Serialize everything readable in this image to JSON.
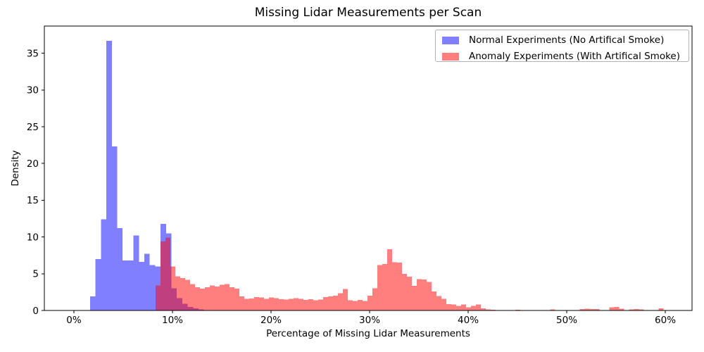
{
  "chart_data": {
    "type": "bar",
    "subtype": "histogram-density-overlay",
    "title": "Missing Lidar Measurements per Scan",
    "xlabel": "Percentage of Missing Lidar Measurements",
    "ylabel": "Density",
    "xlim": [
      -3,
      62.71
    ],
    "ylim": [
      0,
      38.7
    ],
    "grid": false,
    "bar_alpha": 0.5,
    "x_ticks": {
      "values": [
        0,
        10,
        20,
        30,
        40,
        50,
        60
      ],
      "labels": [
        "0%",
        "10%",
        "20%",
        "30%",
        "40%",
        "50%",
        "60%"
      ]
    },
    "y_ticks": {
      "values": [
        0,
        5,
        10,
        15,
        20,
        25,
        30,
        35
      ],
      "labels": [
        "0",
        "5",
        "10",
        "15",
        "20",
        "25",
        "30",
        "35"
      ]
    },
    "legend": {
      "position": "upper right",
      "entries": [
        {
          "label": "Normal Experiments (No Artifical Smoke)",
          "color": "#0000ff"
        },
        {
          "label": "Anomaly Experiments (With Artifical Smoke)",
          "color": "#ff0000"
        }
      ]
    },
    "series": [
      {
        "name": "Normal Experiments (No Artifical Smoke)",
        "color": "#0000ff",
        "bin_start_percent": 1.64,
        "bin_width_percent": 0.55,
        "heights": [
          1.9,
          7.0,
          12.4,
          36.7,
          22.3,
          11.2,
          6.8,
          6.8,
          10.2,
          6.6,
          7.7,
          6.2,
          6.0,
          11.8,
          10.5,
          3.0,
          1.7,
          0.9,
          0.5,
          0.3,
          0.15
        ]
      },
      {
        "name": "Anomaly Experiments (With Artifical Smoke)",
        "color": "#ff0000",
        "bin_start_percent": 8.3,
        "bin_width_percent": 0.5,
        "heights": [
          3.4,
          9.4,
          9.9,
          6.0,
          4.65,
          4.4,
          4.15,
          3.6,
          3.15,
          2.95,
          3.15,
          3.4,
          3.25,
          3.5,
          3.6,
          3.15,
          2.95,
          1.9,
          1.6,
          1.65,
          1.8,
          1.75,
          1.6,
          1.75,
          1.7,
          1.55,
          1.5,
          1.6,
          1.7,
          1.6,
          1.45,
          1.55,
          1.4,
          1.5,
          1.8,
          1.9,
          2.0,
          2.35,
          2.9,
          1.4,
          1.3,
          1.45,
          1.3,
          2.0,
          3.0,
          6.2,
          6.3,
          8.35,
          6.55,
          6.5,
          5.0,
          4.6,
          3.35,
          4.25,
          4.2,
          3.9,
          2.6,
          1.95,
          1.6,
          0.85,
          0.8,
          0.6,
          0.8,
          0.45,
          0.6,
          0.8,
          0.3,
          0.15,
          0.1,
          0,
          0,
          0,
          0,
          0.1,
          0,
          0,
          0,
          0,
          0,
          0,
          0.15,
          0,
          0,
          0,
          0,
          0,
          0.2,
          0.25,
          0.2,
          0.2,
          0,
          0,
          0.45,
          0.5,
          0.25,
          0,
          0.15,
          0.2,
          0.15,
          0,
          0,
          0,
          0.3,
          0
        ]
      }
    ]
  }
}
